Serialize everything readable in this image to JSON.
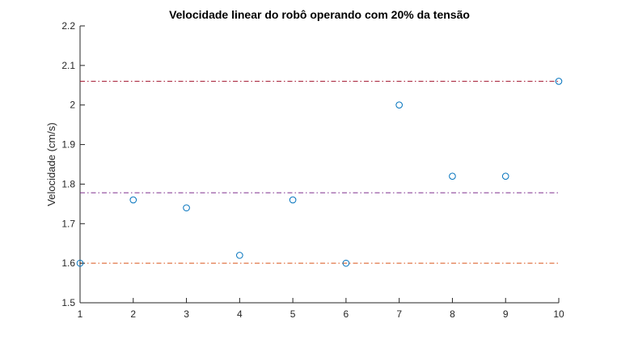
{
  "chart_data": {
    "type": "scatter",
    "title": "Velocidade linear do robô operando com 20% da tensão",
    "xlabel": "",
    "ylabel": "Velocidade (cm/s)",
    "xlim": [
      1,
      10
    ],
    "ylim": [
      1.5,
      2.2
    ],
    "xticks": [
      1,
      2,
      3,
      4,
      5,
      6,
      7,
      8,
      9,
      10
    ],
    "yticks": [
      1.5,
      1.6,
      1.7,
      1.8,
      1.9,
      2.0,
      2.1,
      2.2
    ],
    "ytick_labels": [
      "1.5",
      "1.6",
      "1.7",
      "1.8",
      "1.9",
      "2",
      "2.1",
      "2.2"
    ],
    "grid": false,
    "series": [
      {
        "marker": "circle-open",
        "color": "#0072BD",
        "x": [
          1,
          2,
          3,
          4,
          5,
          6,
          7,
          8,
          9,
          10
        ],
        "y": [
          1.6,
          1.76,
          1.74,
          1.62,
          1.76,
          1.6,
          2.0,
          1.82,
          1.82,
          2.06
        ]
      }
    ],
    "reference_lines": [
      {
        "y": 2.06,
        "style": "dash-dot",
        "color": "#A2142F"
      },
      {
        "y": 1.778,
        "style": "dash-dot",
        "color": "#7E2F8E"
      },
      {
        "y": 1.6,
        "style": "dash-dot",
        "color": "#D95319"
      }
    ]
  }
}
